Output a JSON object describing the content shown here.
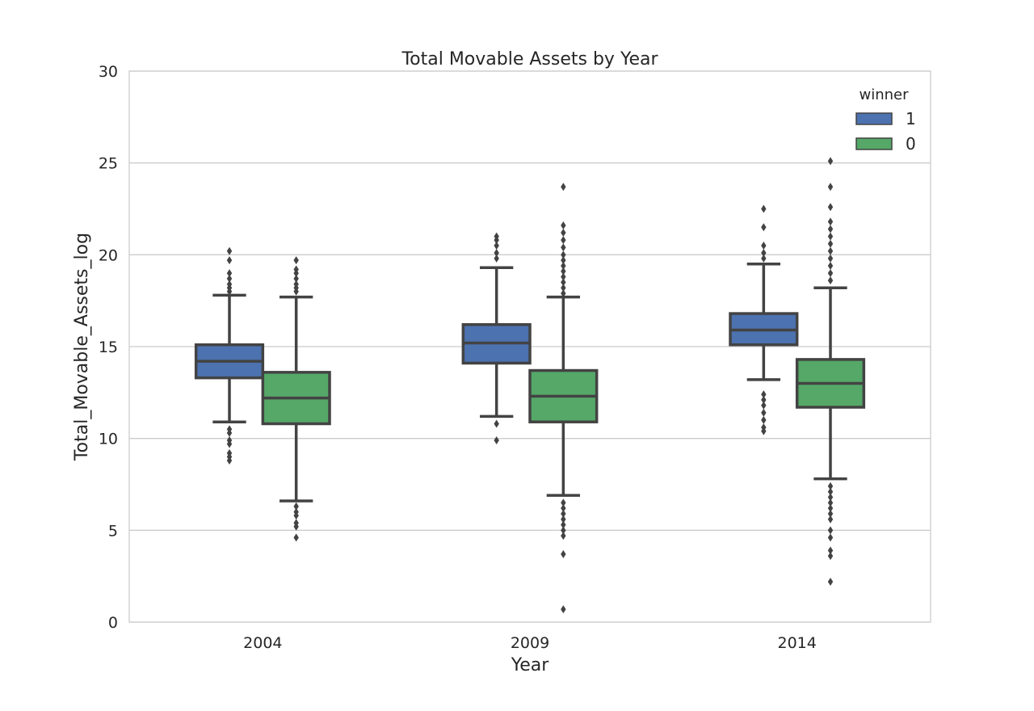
{
  "chart_data": {
    "type": "box",
    "title": "Total Movable Assets by Year",
    "xlabel": "Year",
    "ylabel": "Total_Movable_Assets_log",
    "ylim": [
      0,
      30
    ],
    "yticks": [
      0,
      5,
      10,
      15,
      20,
      25,
      30
    ],
    "categories": [
      "2004",
      "2009",
      "2014"
    ],
    "grid": "horizontal",
    "legend": {
      "title": "winner",
      "placement": "top-right"
    },
    "series": [
      {
        "name": "1",
        "color": "#4c72b0",
        "boxes": [
          {
            "whisker_low": 10.9,
            "q1": 13.3,
            "median": 14.2,
            "q3": 15.1,
            "whisker_high": 17.8,
            "outliers": [
              20.2,
              19.7,
              19.0,
              18.7,
              18.4,
              18.2,
              18.0,
              10.5,
              10.3,
              9.9,
              9.7,
              9.2,
              9.0,
              8.8
            ]
          },
          {
            "whisker_low": 11.2,
            "q1": 14.1,
            "median": 15.2,
            "q3": 16.2,
            "whisker_high": 19.3,
            "outliers": [
              21.0,
              20.8,
              20.5,
              20.1,
              19.8,
              10.8,
              9.9
            ]
          },
          {
            "whisker_low": 13.2,
            "q1": 15.1,
            "median": 15.9,
            "q3": 16.8,
            "whisker_high": 19.5,
            "outliers": [
              22.5,
              21.5,
              20.5,
              20.1,
              19.8,
              12.4,
              12.1,
              11.8,
              11.4,
              11.0,
              10.6,
              10.4
            ]
          }
        ]
      },
      {
        "name": "0",
        "color": "#55a868",
        "boxes": [
          {
            "whisker_low": 6.6,
            "q1": 10.8,
            "median": 12.2,
            "q3": 13.6,
            "whisker_high": 17.7,
            "outliers": [
              19.7,
              19.2,
              19.0,
              18.7,
              18.4,
              18.2,
              18.0,
              6.3,
              6.0,
              5.8,
              5.4,
              5.2,
              4.6
            ]
          },
          {
            "whisker_low": 6.9,
            "q1": 10.9,
            "median": 12.3,
            "q3": 13.7,
            "whisker_high": 17.7,
            "outliers": [
              23.7,
              21.6,
              21.2,
              20.8,
              20.4,
              20.0,
              19.7,
              19.4,
              19.1,
              18.8,
              18.5,
              18.2,
              17.9,
              6.5,
              6.2,
              5.9,
              5.6,
              5.3,
              5.0,
              4.7,
              3.7,
              0.7
            ]
          },
          {
            "whisker_low": 7.8,
            "q1": 11.7,
            "median": 13.0,
            "q3": 14.3,
            "whisker_high": 18.2,
            "outliers": [
              25.1,
              23.7,
              22.6,
              21.8,
              21.4,
              21.0,
              20.6,
              20.2,
              19.8,
              19.4,
              19.0,
              18.6,
              7.4,
              7.1,
              6.8,
              6.5,
              6.2,
              5.9,
              5.6,
              5.0,
              4.6,
              3.9,
              3.6,
              2.2
            ]
          }
        ]
      }
    ]
  }
}
